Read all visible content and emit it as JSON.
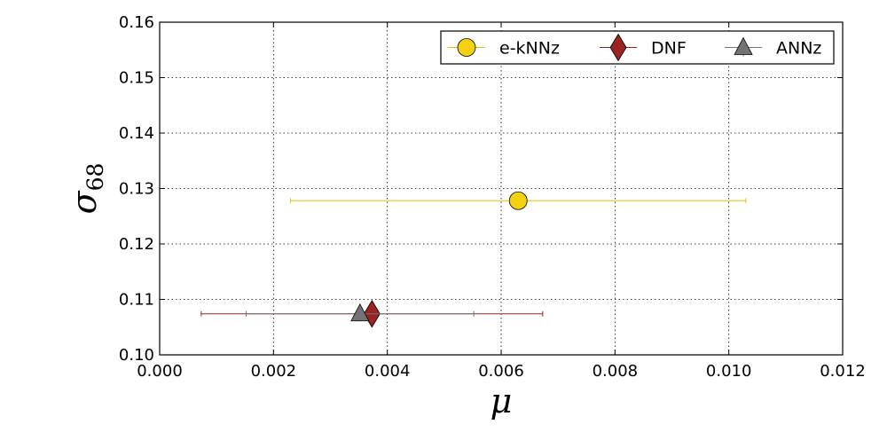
{
  "chart_data": {
    "type": "scatter",
    "xlabel": "μ",
    "ylabel": "σ",
    "ylabel_subscript": "68",
    "xlim": [
      0.0,
      0.012
    ],
    "ylim": [
      0.1,
      0.16
    ],
    "x_ticks": [
      0.0,
      0.002,
      0.004,
      0.006,
      0.008,
      0.01,
      0.012
    ],
    "x_tick_labels": [
      "0.000",
      "0.002",
      "0.004",
      "0.006",
      "0.008",
      "0.010",
      "0.012"
    ],
    "y_ticks": [
      0.1,
      0.11,
      0.12,
      0.13,
      0.14,
      0.15,
      0.16
    ],
    "y_tick_labels": [
      "0.10",
      "0.11",
      "0.12",
      "0.13",
      "0.14",
      "0.15",
      "0.16"
    ],
    "grid": true,
    "legend_position": "top-right",
    "series": [
      {
        "name": "e-kNNz",
        "marker": "circle",
        "color": "#f5d20f",
        "line_color": "#e5c400",
        "x": 0.0063,
        "y": 0.1278,
        "xerr": 0.004,
        "yerr": 0.0012
      },
      {
        "name": "DNF",
        "marker": "diamond",
        "color": "#9b2322",
        "line_color": "#9b2322",
        "x": 0.00373,
        "y": 0.1074,
        "xerr": 0.003,
        "yerr": 0.001
      },
      {
        "name": "ANNz",
        "marker": "triangle",
        "color": "#737373",
        "line_color": "#737373",
        "x": 0.00352,
        "y": 0.1074,
        "xerr": 0.002,
        "yerr": 0.001
      }
    ]
  }
}
